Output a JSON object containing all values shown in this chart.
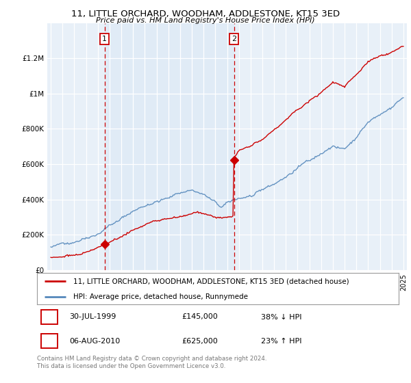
{
  "title": "11, LITTLE ORCHARD, WOODHAM, ADDLESTONE, KT15 3ED",
  "subtitle": "Price paid vs. HM Land Registry's House Price Index (HPI)",
  "legend_line1": "11, LITTLE ORCHARD, WOODHAM, ADDLESTONE, KT15 3ED (detached house)",
  "legend_line2": "HPI: Average price, detached house, Runnymede",
  "table_row1": [
    "1",
    "30-JUL-1999",
    "£145,000",
    "38% ↓ HPI"
  ],
  "table_row2": [
    "2",
    "06-AUG-2010",
    "£625,000",
    "23% ↑ HPI"
  ],
  "footnote": "Contains HM Land Registry data © Crown copyright and database right 2024.\nThis data is licensed under the Open Government Licence v3.0.",
  "sale1_year": 1999.58,
  "sale1_price": 145000,
  "sale2_year": 2010.59,
  "sale2_price": 625000,
  "red_color": "#cc0000",
  "blue_color": "#5588bb",
  "bg_color": "#ffffff",
  "plot_bg": "#e8f0f8",
  "grid_color": "#bbbbbb",
  "ylim": [
    0,
    1400000
  ],
  "xlim_start": 1994.7,
  "xlim_end": 2025.3
}
